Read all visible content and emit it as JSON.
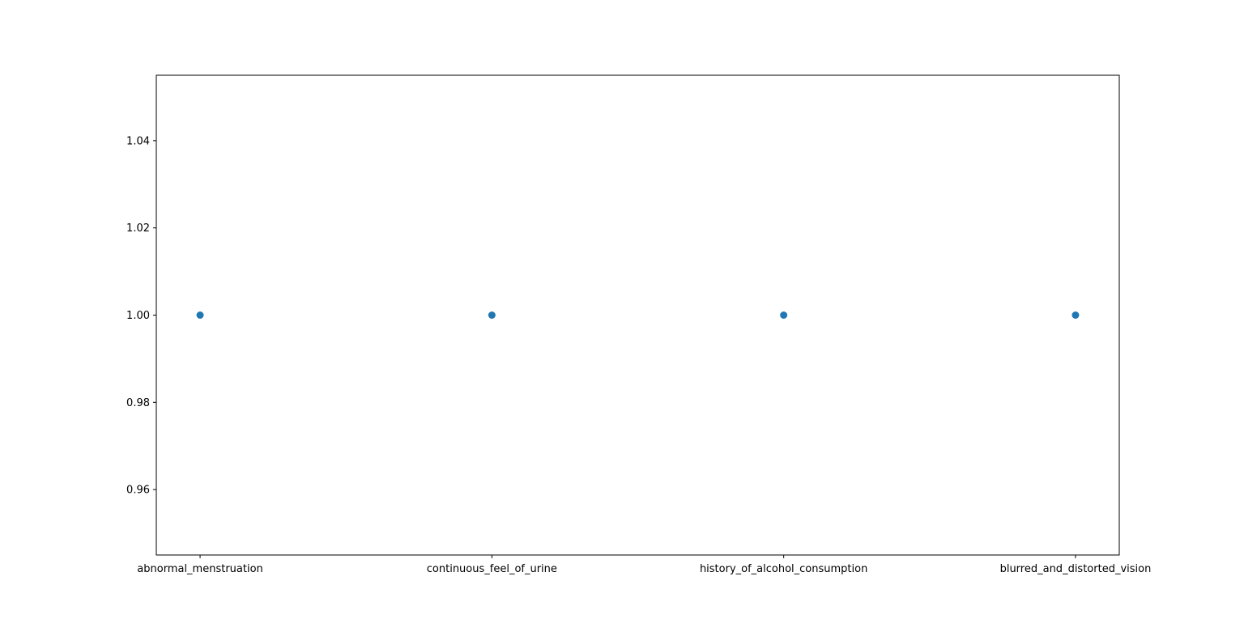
{
  "chart_data": {
    "type": "scatter",
    "categories": [
      "abnormal_menstruation",
      "continuous_feel_of_urine",
      "history_of_alcohol_consumption",
      "blurred_and_distorted_vision"
    ],
    "values": [
      1.0,
      1.0,
      1.0,
      1.0
    ],
    "ylim": [
      0.945,
      1.055
    ],
    "yticks": [
      0.96,
      0.98,
      1.0,
      1.02,
      1.04
    ],
    "ytick_labels": [
      "0.96",
      "0.98",
      "1.00",
      "1.02",
      "1.04"
    ],
    "grid": false,
    "colors": {
      "marker": "#1f77b4",
      "axes": "#000000"
    }
  }
}
